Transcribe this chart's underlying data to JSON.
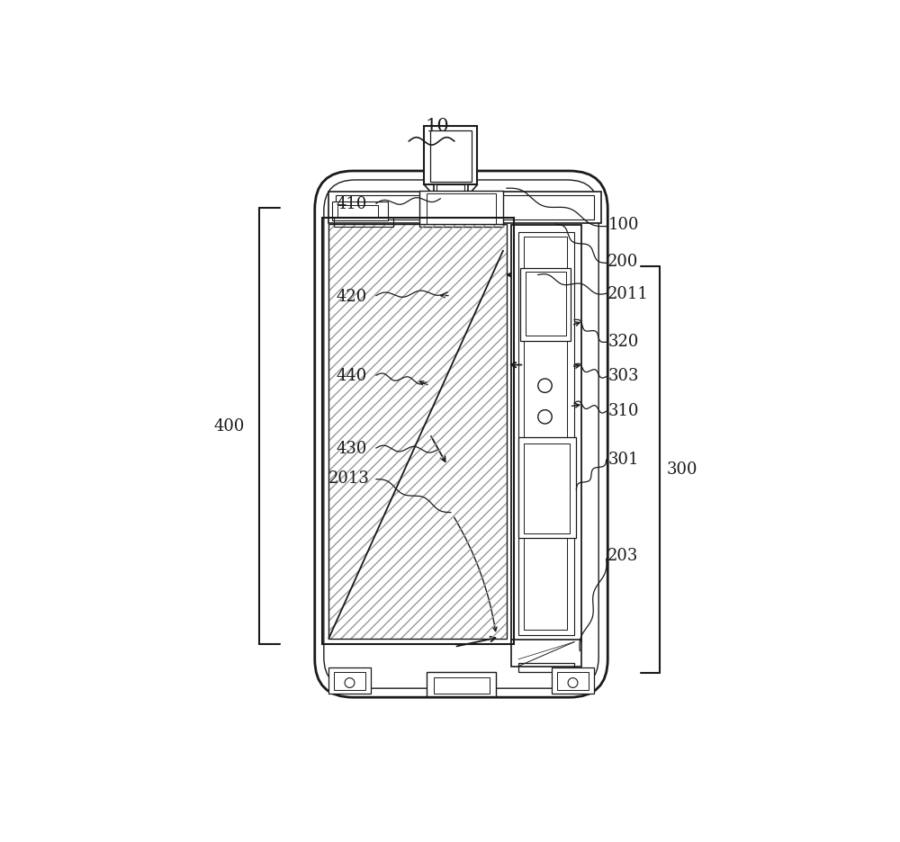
{
  "bg_color": "#ffffff",
  "line_color": "#1a1a1a",
  "label_color": "#1a1a1a",
  "font_size": 13
}
